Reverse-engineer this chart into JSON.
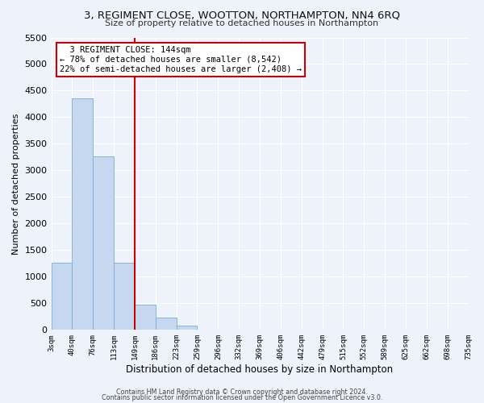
{
  "title": "3, REGIMENT CLOSE, WOOTTON, NORTHAMPTON, NN4 6RQ",
  "subtitle": "Size of property relative to detached houses in Northampton",
  "xlabel": "Distribution of detached houses by size in Northampton",
  "ylabel": "Number of detached properties",
  "bar_color": "#c5d8f0",
  "bar_edge_color": "#7aadd4",
  "background_color": "#eef2fb",
  "grid_color": "#ffffff",
  "tick_labels": [
    "3sqm",
    "40sqm",
    "76sqm",
    "113sqm",
    "149sqm",
    "186sqm",
    "223sqm",
    "259sqm",
    "296sqm",
    "332sqm",
    "369sqm",
    "406sqm",
    "442sqm",
    "479sqm",
    "515sqm",
    "552sqm",
    "589sqm",
    "625sqm",
    "662sqm",
    "698sqm",
    "735sqm"
  ],
  "bar_values": [
    1270,
    4350,
    3270,
    1270,
    480,
    230,
    75,
    0,
    0,
    0,
    0,
    0,
    0,
    0,
    0,
    0,
    0,
    0,
    0,
    0
  ],
  "ylim": [
    0,
    5500
  ],
  "yticks": [
    0,
    500,
    1000,
    1500,
    2000,
    2500,
    3000,
    3500,
    4000,
    4500,
    5000,
    5500
  ],
  "vline_label": "3 REGIMENT CLOSE: 144sqm",
  "annotation_line1": "← 78% of detached houses are smaller (8,542)",
  "annotation_line2": "22% of semi-detached houses are larger (2,408) →",
  "annotation_box_color": "#ffffff",
  "annotation_box_edge": "#cc0000",
  "vline_color": "#cc0000",
  "footer1": "Contains HM Land Registry data © Crown copyright and database right 2024.",
  "footer2": "Contains public sector information licensed under the Open Government Licence v3.0."
}
